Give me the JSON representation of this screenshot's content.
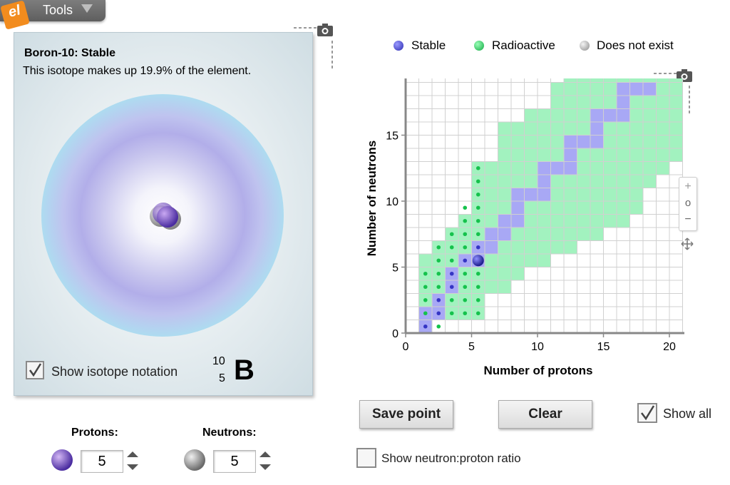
{
  "toolbar": {
    "logo_text": "el",
    "tools_label": "Tools",
    "logo_color": "#f28c1e"
  },
  "atom_panel": {
    "isotope_title": "Boron-10: Stable",
    "isotope_description": "This isotope makes up 19.9% of the element.",
    "show_notation_label": "Show isotope notation",
    "show_notation_checked": true,
    "notation": {
      "mass_number": "10",
      "atomic_number": "5",
      "symbol": "B"
    }
  },
  "controls": {
    "protons_label": "Protons:",
    "protons_value": "5",
    "neutrons_label": "Neutrons:",
    "neutrons_value": "5"
  },
  "legend": {
    "items": [
      {
        "label": "Stable",
        "color": "#3b3bd1"
      },
      {
        "label": "Radioactive",
        "color": "#1fd65a"
      },
      {
        "label": "Does not exist",
        "color": "#bdbdbd"
      }
    ]
  },
  "chart_data": {
    "type": "heatmap",
    "title": "",
    "xlabel": "Number of protons",
    "ylabel": "Number of neutrons",
    "xlim": [
      0,
      20
    ],
    "ylim": [
      0,
      20
    ],
    "xticks": [
      "0",
      "5",
      "10",
      "15",
      "20"
    ],
    "yticks": [
      "0",
      "5",
      "10",
      "15",
      "20"
    ],
    "colors": {
      "stable": "#a8a8f5",
      "radioactive": "#a2f2bf",
      "grid": "#d0d0d0",
      "axis": "#888888",
      "dot_stable": "#3535c4",
      "dot_radioactive": "#15c24c"
    },
    "radioactive_columns": [
      {
        "z": 1,
        "n_min": 0,
        "n_max": 5
      },
      {
        "z": 2,
        "n_min": 1,
        "n_max": 6
      },
      {
        "z": 3,
        "n_min": 1,
        "n_max": 7
      },
      {
        "z": 4,
        "n_min": 1,
        "n_max": 8
      },
      {
        "z": 5,
        "n_min": 1,
        "n_max": 12
      },
      {
        "z": 6,
        "n_min": 3,
        "n_max": 12
      },
      {
        "z": 7,
        "n_min": 3,
        "n_max": 15
      },
      {
        "z": 8,
        "n_min": 4,
        "n_max": 15
      },
      {
        "z": 9,
        "n_min": 5,
        "n_max": 16
      },
      {
        "z": 10,
        "n_min": 5,
        "n_max": 16
      },
      {
        "z": 11,
        "n_min": 6,
        "n_max": 18
      },
      {
        "z": 12,
        "n_min": 6,
        "n_max": 19
      },
      {
        "z": 13,
        "n_min": 7,
        "n_max": 19
      },
      {
        "z": 14,
        "n_min": 7,
        "n_max": 19
      },
      {
        "z": 15,
        "n_min": 8,
        "n_max": 19
      },
      {
        "z": 16,
        "n_min": 8,
        "n_max": 19
      },
      {
        "z": 17,
        "n_min": 9,
        "n_max": 19
      },
      {
        "z": 18,
        "n_min": 11,
        "n_max": 19
      },
      {
        "z": 19,
        "n_min": 12,
        "n_max": 19
      },
      {
        "z": 20,
        "n_min": 13,
        "n_max": 19
      }
    ],
    "stable_points": [
      [
        1,
        0
      ],
      [
        1,
        1
      ],
      [
        2,
        1
      ],
      [
        2,
        2
      ],
      [
        3,
        3
      ],
      [
        3,
        4
      ],
      [
        4,
        5
      ],
      [
        5,
        5
      ],
      [
        5,
        6
      ],
      [
        6,
        6
      ],
      [
        6,
        7
      ],
      [
        7,
        7
      ],
      [
        7,
        8
      ],
      [
        8,
        8
      ],
      [
        8,
        9
      ],
      [
        8,
        10
      ],
      [
        9,
        10
      ],
      [
        10,
        10
      ],
      [
        10,
        11
      ],
      [
        10,
        12
      ],
      [
        11,
        12
      ],
      [
        12,
        12
      ],
      [
        12,
        13
      ],
      [
        12,
        14
      ],
      [
        13,
        14
      ],
      [
        14,
        14
      ],
      [
        14,
        15
      ],
      [
        14,
        16
      ],
      [
        15,
        16
      ],
      [
        16,
        16
      ],
      [
        16,
        17
      ],
      [
        16,
        18
      ],
      [
        17,
        18
      ],
      [
        18,
        18
      ],
      [
        17,
        20
      ],
      [
        18,
        20
      ],
      [
        19,
        20
      ],
      [
        20,
        20
      ]
    ],
    "existing_dots": [
      {
        "z": 1,
        "n": [
          0
        ],
        "kind": "stable"
      },
      {
        "z": 1,
        "n": [
          1,
          2,
          3,
          4
        ],
        "kind": "radioactive"
      },
      {
        "z": 2,
        "n": [
          1,
          2
        ],
        "kind": "stable"
      },
      {
        "z": 2,
        "n": [
          0,
          3,
          4,
          5,
          6
        ],
        "kind": "radioactive"
      },
      {
        "z": 3,
        "n": [
          3,
          4
        ],
        "kind": "stable"
      },
      {
        "z": 3,
        "n": [
          1,
          2,
          5,
          6,
          7
        ],
        "kind": "radioactive"
      },
      {
        "z": 4,
        "n": [
          5
        ],
        "kind": "stable"
      },
      {
        "z": 4,
        "n": [
          1,
          2,
          3,
          4,
          6,
          7,
          8,
          9
        ],
        "kind": "radioactive"
      },
      {
        "z": 5,
        "n": [
          6
        ],
        "kind": "stable"
      },
      {
        "z": 5,
        "n": [
          1,
          2,
          3,
          4,
          7,
          8,
          9,
          10,
          11,
          12
        ],
        "kind": "radioactive"
      }
    ],
    "current_point": {
      "protons": 5,
      "neutrons": 5
    },
    "show_all": true
  },
  "actions": {
    "save_point_label": "Save point",
    "clear_label": "Clear",
    "show_all_label": "Show all",
    "show_all_checked": true,
    "show_ratio_label": "Show neutron:proton ratio",
    "show_ratio_checked": false
  },
  "zoom": {
    "plus": "+",
    "reset": "o",
    "minus": "−"
  }
}
